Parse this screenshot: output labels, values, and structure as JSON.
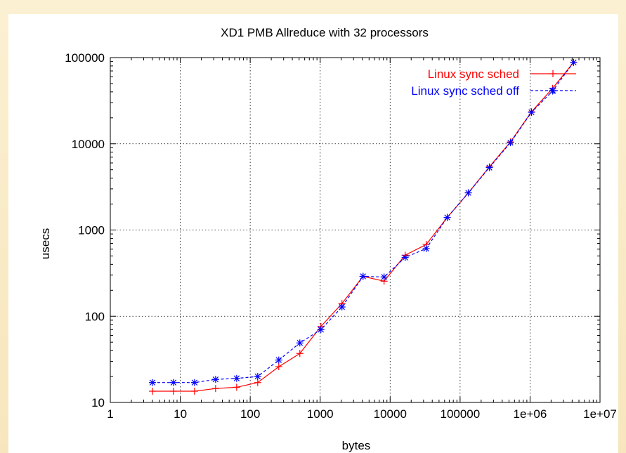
{
  "chart_data": {
    "type": "line",
    "title": "XD1 PMB Allreduce with 32 processors",
    "xlabel": "bytes",
    "ylabel": "usecs",
    "xscale": "log",
    "yscale": "log",
    "xlim": [
      1,
      10000000
    ],
    "ylim": [
      10,
      100000
    ],
    "x_ticks": [
      1,
      10,
      100,
      1000,
      10000,
      100000,
      1000000,
      10000000
    ],
    "x_tick_labels": [
      "1",
      "10",
      "100",
      "1000",
      "10000",
      "100000",
      "1e+06",
      "1e+07"
    ],
    "y_ticks": [
      10,
      100,
      1000,
      10000,
      100000
    ],
    "y_tick_labels": [
      "10",
      "100",
      "1000",
      "10000",
      "100000"
    ],
    "grid": true,
    "legend_position": "top-right",
    "x": [
      4,
      8,
      16,
      32,
      64,
      128,
      256,
      512,
      1024,
      2048,
      4096,
      8192,
      16384,
      32768,
      65536,
      131072,
      262144,
      524288,
      1048576,
      2097152,
      4194304
    ],
    "series": [
      {
        "name": "Linux sync sched",
        "color": "#ff0000",
        "marker": "plus",
        "dash": false,
        "values": [
          13.5,
          13.5,
          13.5,
          14.5,
          15,
          17,
          26,
          37,
          76,
          140,
          290,
          255,
          510,
          680,
          1400,
          2700,
          5400,
          10500,
          23500,
          44000,
          88000
        ]
      },
      {
        "name": "Linux sync sched off",
        "color": "#0000ff",
        "marker": "star",
        "dash": true,
        "values": [
          17,
          17,
          17,
          18.5,
          19,
          20,
          31,
          49,
          70,
          128,
          290,
          285,
          480,
          610,
          1400,
          2700,
          5300,
          10300,
          23200,
          41000,
          88000
        ]
      }
    ]
  }
}
